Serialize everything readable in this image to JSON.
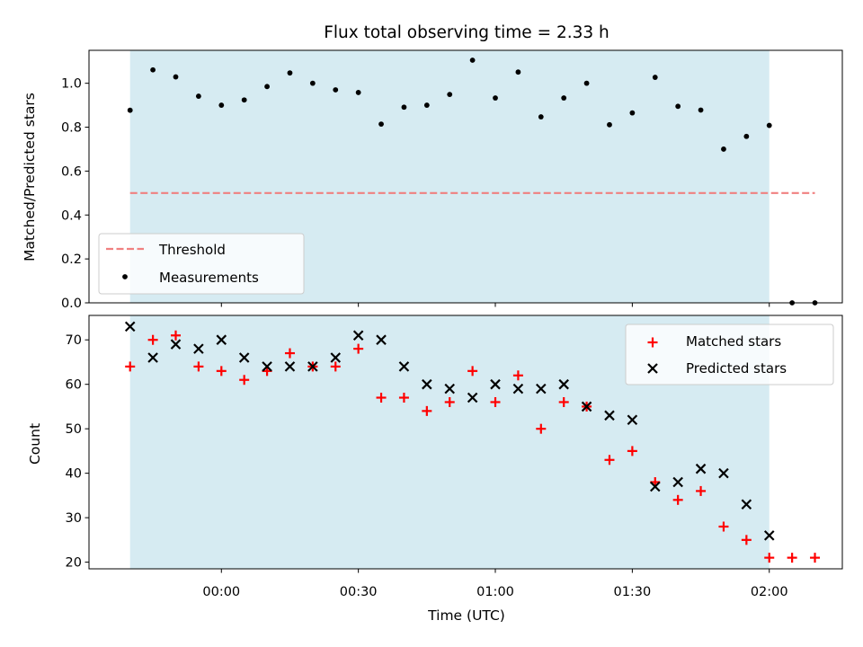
{
  "chart_data": [
    {
      "type": "scatter",
      "title": "Flux total observing time = 2.33 h",
      "xlabel": "",
      "ylabel": "Matched/Predicted stars",
      "ylim": [
        0,
        1.15
      ],
      "yticks": [
        "0.0",
        "0.2",
        "0.4",
        "0.6",
        "0.8",
        "1.0"
      ],
      "legend_position": "lower-left",
      "shaded_span": {
        "start": "23:40",
        "end": "02:00",
        "color": "#add8e6"
      },
      "threshold": {
        "name": "Threshold",
        "value": 0.5,
        "x_start": "23:40",
        "x_end": "02:10",
        "color": "#f08080",
        "style": "dashed"
      },
      "series": [
        {
          "name": "Measurements",
          "marker": "dot",
          "color": "#000000",
          "x": [
            "23:40",
            "23:45",
            "23:50",
            "23:55",
            "00:00",
            "00:05",
            "00:10",
            "00:15",
            "00:20",
            "00:25",
            "00:30",
            "00:35",
            "00:40",
            "00:45",
            "00:50",
            "00:55",
            "01:00",
            "01:05",
            "01:10",
            "01:15",
            "01:20",
            "01:25",
            "01:30",
            "01:35",
            "01:40",
            "01:45",
            "01:50",
            "01:55",
            "02:00",
            "02:05",
            "02:10"
          ],
          "y": [
            0.877,
            1.061,
            1.029,
            0.941,
            0.9,
            0.924,
            0.985,
            1.047,
            1.0,
            0.97,
            0.958,
            0.814,
            0.891,
            0.9,
            0.949,
            1.105,
            0.933,
            1.051,
            0.847,
            0.933,
            1.0,
            0.811,
            0.865,
            1.027,
            0.895,
            0.878,
            0.7,
            0.758,
            0.808,
            0.0,
            0.0
          ]
        }
      ]
    },
    {
      "type": "scatter",
      "xlabel": "Time (UTC)",
      "ylabel": "Count",
      "ylim": [
        18.5,
        75.5
      ],
      "yticks": [
        "20",
        "30",
        "40",
        "50",
        "60",
        "70"
      ],
      "xticks": [
        "00:00",
        "00:30",
        "01:00",
        "01:30",
        "02:00"
      ],
      "legend_position": "top-right",
      "shaded_span": {
        "start": "23:40",
        "end": "02:00",
        "color": "#add8e6"
      },
      "series": [
        {
          "name": "Matched stars",
          "marker": "plus",
          "color": "#ff0000",
          "x": [
            "23:40",
            "23:45",
            "23:50",
            "23:55",
            "00:00",
            "00:05",
            "00:10",
            "00:15",
            "00:20",
            "00:25",
            "00:30",
            "00:35",
            "00:40",
            "00:45",
            "00:50",
            "00:55",
            "01:00",
            "01:05",
            "01:10",
            "01:15",
            "01:20",
            "01:25",
            "01:30",
            "01:35",
            "01:40",
            "01:45",
            "01:50",
            "01:55",
            "02:00",
            "02:05",
            "02:10"
          ],
          "y": [
            64,
            70,
            71,
            64,
            63,
            61,
            63,
            67,
            64,
            64,
            68,
            57,
            57,
            54,
            56,
            63,
            56,
            62,
            50,
            56,
            55,
            43,
            45,
            38,
            34,
            36,
            28,
            25,
            21,
            21,
            21
          ]
        },
        {
          "name": "Predicted stars",
          "marker": "x",
          "color": "#000000",
          "x": [
            "23:40",
            "23:45",
            "23:50",
            "23:55",
            "00:00",
            "00:05",
            "00:10",
            "00:15",
            "00:20",
            "00:25",
            "00:30",
            "00:35",
            "00:40",
            "00:45",
            "00:50",
            "00:55",
            "01:00",
            "01:05",
            "01:10",
            "01:15",
            "01:20",
            "01:25",
            "01:30",
            "01:35",
            "01:40",
            "01:45",
            "01:50",
            "01:55",
            "02:00"
          ],
          "y": [
            73,
            66,
            69,
            68,
            70,
            66,
            64,
            64,
            64,
            66,
            71,
            70,
            64,
            60,
            59,
            57,
            60,
            59,
            59,
            60,
            55,
            53,
            52,
            37,
            38,
            41,
            40,
            33,
            26
          ]
        }
      ]
    }
  ]
}
